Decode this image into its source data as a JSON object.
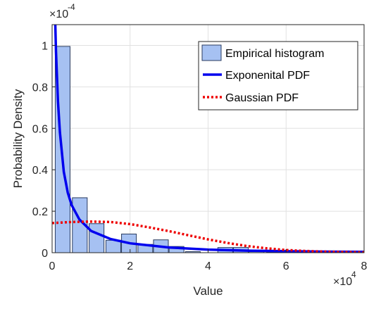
{
  "chart_data": {
    "type": "bar",
    "title": "",
    "xlabel": "Value",
    "ylabel": "Probability Density",
    "x_multiplier": "×10",
    "x_multiplier_exp": "4",
    "y_multiplier": "×10",
    "y_multiplier_exp": "-4",
    "xlim": [
      0,
      8
    ],
    "ylim": [
      0,
      1.1
    ],
    "x_ticks": [
      0,
      2,
      4,
      6,
      8
    ],
    "y_ticks": [
      0,
      0.2,
      0.4,
      0.6,
      0.8,
      1
    ],
    "x_tick_labels": [
      "0",
      "2",
      "4",
      "6",
      "8"
    ],
    "y_tick_labels": [
      "0",
      "0.2",
      "0.4",
      "0.6",
      "0.8",
      "1"
    ],
    "grid": true,
    "legend_position": "top-right",
    "histogram": {
      "name": "Empirical histogram",
      "bin_width": 0.38,
      "bin_starts": [
        0.08,
        0.52,
        0.95,
        1.38,
        1.78,
        2.2,
        2.6,
        3.0,
        3.42,
        4.25,
        4.65,
        5.05,
        5.5,
        7.2,
        7.6
      ],
      "values": [
        0.995,
        0.265,
        0.14,
        0.06,
        0.09,
        0.04,
        0.062,
        0.03,
        0.005,
        0.025,
        0.025,
        0.005,
        0.003,
        0.004,
        0.003
      ],
      "color": "#a6c1f2",
      "edge_color": "#2a3b5f"
    },
    "series": [
      {
        "name": "Exponenital PDF",
        "type": "line",
        "style": "solid",
        "color": "#0000ee",
        "x": [
          0.08,
          0.1,
          0.15,
          0.2,
          0.3,
          0.4,
          0.5,
          0.7,
          1.0,
          1.5,
          2.0,
          3.0,
          4.0,
          5.0,
          6.0,
          7.0,
          8.0
        ],
        "values": [
          1.12,
          0.97,
          0.73,
          0.58,
          0.39,
          0.29,
          0.23,
          0.16,
          0.105,
          0.066,
          0.045,
          0.025,
          0.015,
          0.01,
          0.007,
          0.005,
          0.004
        ]
      },
      {
        "name": "Gaussian PDF",
        "type": "line",
        "style": "dotted",
        "color": "#ee0000",
        "x": [
          0,
          0.5,
          1.0,
          1.5,
          2.0,
          2.5,
          3.0,
          3.5,
          4.0,
          4.5,
          5.0,
          5.5,
          6.0,
          6.5,
          7.0,
          7.5,
          8.0
        ],
        "values": [
          0.143,
          0.148,
          0.15,
          0.148,
          0.138,
          0.122,
          0.104,
          0.084,
          0.064,
          0.047,
          0.032,
          0.021,
          0.013,
          0.008,
          0.005,
          0.003,
          0.002
        ]
      }
    ],
    "legend": [
      {
        "label": "Empirical histogram",
        "kind": "patch"
      },
      {
        "label": "Exponenital PDF",
        "kind": "line-solid"
      },
      {
        "label": "Gaussian PDF",
        "kind": "line-dotted"
      }
    ]
  }
}
